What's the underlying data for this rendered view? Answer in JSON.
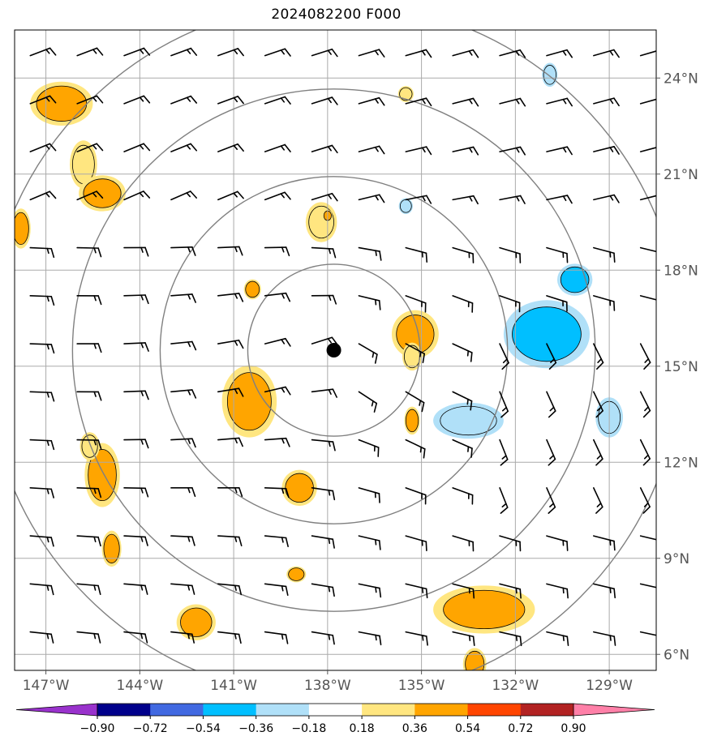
{
  "title": "2024082200 F000",
  "chart_data": {
    "type": "map",
    "title": "2024082200 F000",
    "xlim": [
      -148.0,
      -127.5
    ],
    "ylim": [
      5.5,
      25.5
    ],
    "x_ticks": [
      {
        "value": -147,
        "label": "147°W"
      },
      {
        "value": -144,
        "label": "144°W"
      },
      {
        "value": -141,
        "label": "141°W"
      },
      {
        "value": -138,
        "label": "138°W"
      },
      {
        "value": -135,
        "label": "135°W"
      },
      {
        "value": -132,
        "label": "132°W"
      },
      {
        "value": -129,
        "label": "129°W"
      }
    ],
    "y_ticks": [
      {
        "value": 24,
        "label": "24°N"
      },
      {
        "value": 21,
        "label": "21°N"
      },
      {
        "value": 18,
        "label": "18°N"
      },
      {
        "value": 15,
        "label": "15°N"
      },
      {
        "value": 12,
        "label": "12°N"
      },
      {
        "value": 9,
        "label": "9°N"
      },
      {
        "value": 6,
        "label": "6°N"
      }
    ],
    "grid": true,
    "center": {
      "lon": -137.8,
      "lat": 15.5
    },
    "range_ring_radii_deg": [
      2.75,
      5.55,
      8.35,
      11.15
    ],
    "colorbar": {
      "levels": [
        -0.9,
        -0.72,
        -0.54,
        -0.36,
        -0.18,
        0.18,
        0.36,
        0.54,
        0.72,
        0.9
      ],
      "labels": [
        "−0.90",
        "−0.72",
        "−0.54",
        "−0.36",
        "−0.18",
        "0.18",
        "0.36",
        "0.54",
        "0.72",
        "0.90"
      ],
      "colors": [
        "#9932cc",
        "#00008b",
        "#4169e1",
        "#00bfff",
        "#b0e0f8",
        "#ffffff",
        "#ffe680",
        "#ffa500",
        "#ff4500",
        "#b22222",
        "#ff80a8"
      ]
    },
    "features": [
      {
        "lon": -146.5,
        "lat": 23.2,
        "rx": 0.8,
        "ry": 0.55,
        "level": 0.36
      },
      {
        "lon": -145.8,
        "lat": 21.3,
        "rx": 0.35,
        "ry": 0.6,
        "level": 0.18
      },
      {
        "lon": -145.2,
        "lat": 20.4,
        "rx": 0.6,
        "ry": 0.45,
        "level": 0.36
      },
      {
        "lon": -147.8,
        "lat": 19.3,
        "rx": 0.25,
        "ry": 0.5,
        "level": 0.36
      },
      {
        "lon": -135.5,
        "lat": 23.5,
        "rx": 0.2,
        "ry": 0.2,
        "level": 0.18
      },
      {
        "lon": -138.2,
        "lat": 19.5,
        "rx": 0.4,
        "ry": 0.5,
        "level": 0.18
      },
      {
        "lon": -138.0,
        "lat": 19.7,
        "rx": 0.12,
        "ry": 0.15,
        "level": 0.36
      },
      {
        "lon": -140.4,
        "lat": 17.4,
        "rx": 0.22,
        "ry": 0.25,
        "level": 0.36
      },
      {
        "lon": -135.2,
        "lat": 16.0,
        "rx": 0.6,
        "ry": 0.6,
        "level": 0.36
      },
      {
        "lon": -135.3,
        "lat": 15.3,
        "rx": 0.25,
        "ry": 0.35,
        "level": 0.18
      },
      {
        "lon": -140.5,
        "lat": 13.9,
        "rx": 0.7,
        "ry": 0.9,
        "level": 0.36
      },
      {
        "lon": -135.3,
        "lat": 13.3,
        "rx": 0.2,
        "ry": 0.35,
        "level": 0.36
      },
      {
        "lon": -145.2,
        "lat": 11.6,
        "rx": 0.45,
        "ry": 0.8,
        "level": 0.36
      },
      {
        "lon": -145.6,
        "lat": 12.5,
        "rx": 0.25,
        "ry": 0.35,
        "level": 0.18
      },
      {
        "lon": -138.9,
        "lat": 11.2,
        "rx": 0.45,
        "ry": 0.45,
        "level": 0.36
      },
      {
        "lon": -144.9,
        "lat": 9.3,
        "rx": 0.25,
        "ry": 0.45,
        "level": 0.36
      },
      {
        "lon": -139.0,
        "lat": 8.5,
        "rx": 0.25,
        "ry": 0.2,
        "level": 0.36
      },
      {
        "lon": -142.2,
        "lat": 7.0,
        "rx": 0.5,
        "ry": 0.45,
        "level": 0.36
      },
      {
        "lon": -133.0,
        "lat": 7.4,
        "rx": 1.3,
        "ry": 0.6,
        "level": 0.36
      },
      {
        "lon": -133.3,
        "lat": 5.7,
        "rx": 0.3,
        "ry": 0.4,
        "level": 0.36
      },
      {
        "lon": -130.9,
        "lat": 24.1,
        "rx": 0.2,
        "ry": 0.3,
        "level": -0.18
      },
      {
        "lon": -135.5,
        "lat": 20.0,
        "rx": 0.18,
        "ry": 0.2,
        "level": -0.18
      },
      {
        "lon": -130.1,
        "lat": 17.7,
        "rx": 0.45,
        "ry": 0.4,
        "level": -0.36
      },
      {
        "lon": -131.0,
        "lat": 16.0,
        "rx": 1.1,
        "ry": 0.85,
        "level": -0.36
      },
      {
        "lon": -133.5,
        "lat": 13.3,
        "rx": 0.9,
        "ry": 0.45,
        "level": -0.18
      },
      {
        "lon": -129.0,
        "lat": 13.4,
        "rx": 0.35,
        "ry": 0.5,
        "level": -0.18
      }
    ],
    "barbs": {
      "lons": [
        -147.5,
        -146,
        -144.5,
        -143,
        -141.5,
        -140,
        -138.5,
        -137,
        -135.5,
        -134,
        -132.5,
        -131,
        -129.5,
        -128
      ],
      "lats": [
        24.7,
        23.2,
        21.7,
        20.2,
        18.7,
        17.2,
        15.7,
        14.2,
        12.7,
        11.2,
        9.7,
        8.2,
        6.7
      ]
    }
  }
}
